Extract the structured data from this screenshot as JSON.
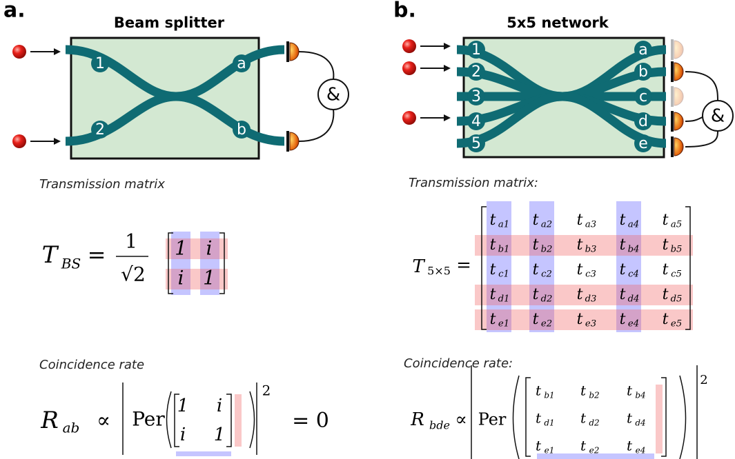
{
  "panel_a": {
    "label": "a.",
    "title": "Beam splitter",
    "inputs": [
      "1",
      "2"
    ],
    "outputs": [
      "a",
      "b"
    ],
    "gate": "&",
    "matrix_caption": "Transmission matrix",
    "matrix_symbol": "T",
    "matrix_subscript": "BS",
    "equals": "=",
    "prefactor_numerator": "1",
    "prefactor_denominator": "√2",
    "matrix": [
      [
        "1",
        "i"
      ],
      [
        "i",
        "1"
      ]
    ],
    "rate_caption": "Coincidence rate",
    "rate_symbol": "R",
    "rate_subscript": "ab",
    "proportional": "∝",
    "per": "Per",
    "power": "2",
    "submatrix": [
      [
        "1",
        "i"
      ],
      [
        "i",
        "1"
      ]
    ],
    "result": "= 0"
  },
  "panel_b": {
    "label": "b.",
    "title": "5x5 network",
    "inputs": [
      "1",
      "2",
      "3",
      "4",
      "5"
    ],
    "outputs": [
      "a",
      "b",
      "c",
      "d",
      "e"
    ],
    "gate": "&",
    "matrix_caption": "Transmission matrix:",
    "matrix_symbol": "T",
    "matrix_subscript": "5×5",
    "equals": "=",
    "entry_symbol": "t",
    "matrix": [
      [
        "a1",
        "a2",
        "a3",
        "a4",
        "a5"
      ],
      [
        "b1",
        "b2",
        "b3",
        "b4",
        "b5"
      ],
      [
        "c1",
        "c2",
        "c3",
        "c4",
        "c5"
      ],
      [
        "d1",
        "d2",
        "d3",
        "d4",
        "d5"
      ],
      [
        "e1",
        "e2",
        "e3",
        "e4",
        "e5"
      ]
    ],
    "rate_caption": "Coincidence rate:",
    "rate_symbol": "R",
    "rate_subscript": "bde",
    "proportional": "∝",
    "per": "Per",
    "power": "2",
    "submatrix": [
      [
        "b1",
        "b2",
        "b4"
      ],
      [
        "d1",
        "d2",
        "d4"
      ],
      [
        "e1",
        "e2",
        "e4"
      ]
    ]
  }
}
